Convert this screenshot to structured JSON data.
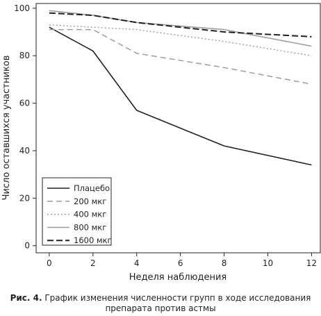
{
  "chart_data": {
    "type": "line",
    "title": "",
    "xlabel": "Неделя наблюдения",
    "ylabel": "Число оставшихся участников",
    "x": [
      0,
      2,
      4,
      8,
      12
    ],
    "x_ticks": [
      0,
      2,
      4,
      6,
      8,
      10,
      12
    ],
    "y_ticks": [
      0,
      20,
      40,
      60,
      80,
      100
    ],
    "xlim": [
      -0.6,
      12.4
    ],
    "ylim": [
      -3,
      102
    ],
    "grid": false,
    "legend_position": "bottom-left",
    "series": [
      {
        "name": "Плацебо",
        "values": [
          92,
          82,
          57,
          42,
          34
        ],
        "color": "#231f20",
        "dash": "solid",
        "width": 1.6
      },
      {
        "name": "200 мкг",
        "values": [
          91,
          91,
          81,
          75,
          68
        ],
        "color": "#9d9d9d",
        "dash": "dashed",
        "width": 1.5
      },
      {
        "name": "400 мкг",
        "values": [
          93,
          92,
          91,
          86,
          80
        ],
        "color": "#9d9d9d",
        "dash": "dotted",
        "width": 1.4
      },
      {
        "name": "800 мкг",
        "values": [
          99,
          97,
          94,
          91,
          84
        ],
        "color": "#9d9d9d",
        "dash": "solid",
        "width": 1.6
      },
      {
        "name": "1600 мкг",
        "values": [
          98,
          97,
          94,
          90,
          88
        ],
        "color": "#231f20",
        "dash": "bold-dashed",
        "width": 2.0
      }
    ]
  },
  "caption": {
    "label": "Рис. 4.",
    "line1": " График изменения численности групп в ходе исследования",
    "line2": "препарата против астмы"
  }
}
